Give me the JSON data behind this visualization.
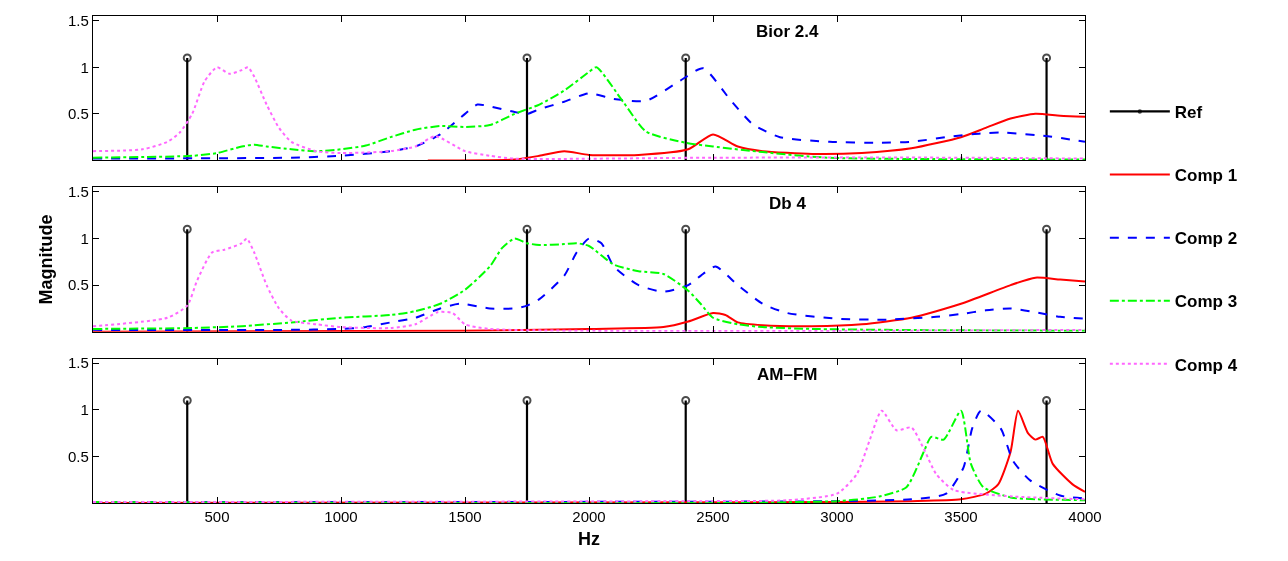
{
  "chart_data": [
    {
      "type": "line",
      "title": "Bior 2.4",
      "xlim": [
        0,
        4000
      ],
      "xticks": [
        500,
        1000,
        1500,
        2000,
        2500,
        3000,
        3500,
        4000
      ],
      "ylim": [
        0,
        1.55
      ],
      "yticks": [
        0.5,
        1,
        1.5
      ],
      "tick_labels": "y",
      "legend": "right",
      "series": [
        {
          "name": "Ref",
          "type": "lollipop",
          "color": "#000000",
          "marker": "circle",
          "x": [
            380,
            1750,
            2390,
            3845
          ],
          "values": [
            1.1,
            1.1,
            1.1,
            1.1
          ]
        },
        {
          "name": "Comp 1",
          "color": "#ff0000",
          "line_style": "solid",
          "x": [
            1350,
            1700,
            1800,
            1900,
            2000,
            2200,
            2400,
            2500,
            2600,
            2700,
            2900,
            3100,
            3300,
            3500,
            3600,
            3700,
            3800,
            3900,
            4000
          ],
          "values": [
            0,
            0.01,
            0.05,
            0.1,
            0.06,
            0.06,
            0.12,
            0.28,
            0.15,
            0.1,
            0.07,
            0.08,
            0.13,
            0.25,
            0.35,
            0.45,
            0.5,
            0.48,
            0.47
          ]
        },
        {
          "name": "Comp 2",
          "color": "#0000ff",
          "line_style": "dashed",
          "x": [
            0,
            800,
            1000,
            1200,
            1300,
            1400,
            1500,
            1550,
            1600,
            1700,
            1750,
            1800,
            1900,
            2000,
            2100,
            2230,
            2370,
            2460,
            2570,
            2660,
            2770,
            2970,
            3170,
            3300,
            3440,
            3580,
            3660,
            3850,
            4000
          ],
          "values": [
            0.02,
            0.03,
            0.05,
            0.1,
            0.15,
            0.28,
            0.5,
            0.6,
            0.58,
            0.52,
            0.5,
            0.55,
            0.63,
            0.72,
            0.66,
            0.64,
            0.86,
            0.99,
            0.65,
            0.39,
            0.25,
            0.2,
            0.19,
            0.2,
            0.25,
            0.29,
            0.3,
            0.26,
            0.2
          ]
        },
        {
          "name": "Comp 3",
          "color": "#00ff00",
          "line_style": "dashdot",
          "x": [
            0,
            400,
            500,
            600,
            650,
            700,
            800,
            900,
            1000,
            1100,
            1200,
            1300,
            1400,
            1500,
            1600,
            1700,
            1800,
            1900,
            2000,
            2030,
            2140,
            2230,
            2390,
            2500,
            2700,
            2960,
            4000
          ],
          "values": [
            0.03,
            0.05,
            0.08,
            0.15,
            0.17,
            0.15,
            0.12,
            0.1,
            0.12,
            0.16,
            0.25,
            0.33,
            0.37,
            0.36,
            0.38,
            0.5,
            0.6,
            0.75,
            0.95,
            1.0,
            0.62,
            0.31,
            0.19,
            0.15,
            0.09,
            0.03,
            0.01
          ]
        },
        {
          "name": "Comp 4",
          "color": "#ff66ff",
          "line_style": "dotted",
          "x": [
            0,
            200,
            300,
            350,
            400,
            450,
            500,
            550,
            600,
            625,
            650,
            700,
            750,
            800,
            900,
            1000,
            1200,
            1300,
            1380,
            1500,
            1600,
            1700,
            2500,
            3500,
            4000
          ],
          "values": [
            0.1,
            0.12,
            0.2,
            0.3,
            0.5,
            0.85,
            1.0,
            0.93,
            0.97,
            1.0,
            0.9,
            0.6,
            0.35,
            0.2,
            0.1,
            0.08,
            0.1,
            0.15,
            0.26,
            0.1,
            0.05,
            0.02,
            0.03,
            0.03,
            0.02
          ]
        }
      ]
    },
    {
      "type": "line",
      "title": "Db 4",
      "ylabel": "Magnitude",
      "xlim": [
        0,
        4000
      ],
      "xticks": [
        500,
        1000,
        1500,
        2000,
        2500,
        3000,
        3500,
        4000
      ],
      "ylim": [
        0,
        1.55
      ],
      "yticks": [
        0.5,
        1,
        1.5
      ],
      "tick_labels": "y",
      "series": [
        {
          "type": "lollipop",
          "color": "#000000",
          "marker": "circle",
          "x": [
            380,
            1750,
            2390,
            3845
          ],
          "values": [
            1.1,
            1.1,
            1.1,
            1.1
          ]
        },
        {
          "color": "#ff0000",
          "line_style": "solid",
          "x": [
            0,
            1500,
            2000,
            2300,
            2400,
            2500,
            2550,
            2600,
            2700,
            2900,
            3100,
            3300,
            3500,
            3700,
            3800,
            3900,
            4000
          ],
          "values": [
            0,
            0.01,
            0.03,
            0.05,
            0.11,
            0.2,
            0.18,
            0.1,
            0.07,
            0.06,
            0.08,
            0.15,
            0.3,
            0.5,
            0.58,
            0.56,
            0.54
          ]
        },
        {
          "color": "#0000ff",
          "line_style": "dashed",
          "x": [
            0,
            800,
            1000,
            1100,
            1200,
            1300,
            1400,
            1480,
            1600,
            1700,
            1750,
            1800,
            1900,
            1950,
            2000,
            2050,
            2100,
            2200,
            2300,
            2400,
            2450,
            2510,
            2600,
            2700,
            2800,
            3000,
            3200,
            3400,
            3500,
            3600,
            3700,
            3800,
            3900,
            4000
          ],
          "values": [
            0.02,
            0.02,
            0.03,
            0.05,
            0.1,
            0.15,
            0.25,
            0.3,
            0.25,
            0.25,
            0.28,
            0.35,
            0.6,
            0.85,
            1.0,
            0.95,
            0.7,
            0.5,
            0.43,
            0.5,
            0.6,
            0.7,
            0.5,
            0.3,
            0.2,
            0.14,
            0.13,
            0.16,
            0.19,
            0.23,
            0.25,
            0.21,
            0.16,
            0.14
          ]
        },
        {
          "color": "#00ff00",
          "line_style": "dashdot",
          "x": [
            0,
            400,
            600,
            800,
            1000,
            1200,
            1300,
            1400,
            1500,
            1600,
            1650,
            1700,
            1750,
            1800,
            1900,
            1950,
            2000,
            2100,
            2200,
            2300,
            2400,
            2450,
            2500,
            2600,
            2700,
            2900,
            3200,
            4000
          ],
          "values": [
            0.03,
            0.04,
            0.06,
            0.1,
            0.15,
            0.18,
            0.22,
            0.3,
            0.45,
            0.7,
            0.9,
            1.0,
            0.95,
            0.93,
            0.94,
            0.95,
            0.92,
            0.72,
            0.65,
            0.62,
            0.44,
            0.3,
            0.15,
            0.08,
            0.05,
            0.03,
            0.02,
            0.01
          ]
        },
        {
          "color": "#ff66ff",
          "line_style": "dotted",
          "x": [
            0,
            300,
            380,
            420,
            480,
            530,
            600,
            620,
            650,
            700,
            750,
            800,
            900,
            1000,
            1200,
            1300,
            1390,
            1450,
            1500,
            1600,
            4000
          ],
          "values": [
            0.06,
            0.15,
            0.28,
            0.55,
            0.85,
            0.88,
            0.95,
            1.0,
            0.85,
            0.5,
            0.25,
            0.12,
            0.08,
            0.05,
            0.04,
            0.08,
            0.21,
            0.2,
            0.08,
            0.03,
            0.02
          ]
        }
      ]
    },
    {
      "type": "line",
      "title": "AM–FM",
      "xlabel": "Hz",
      "xlim": [
        0,
        4000
      ],
      "xticks": [
        500,
        1000,
        1500,
        2000,
        2500,
        3000,
        3500,
        4000
      ],
      "ylim": [
        0,
        1.55
      ],
      "yticks": [
        0.5,
        1,
        1.5
      ],
      "series": [
        {
          "type": "lollipop",
          "color": "#000000",
          "marker": "circle",
          "x": [
            380,
            1750,
            2390,
            3845
          ],
          "values": [
            1.1,
            1.1,
            1.1,
            1.1
          ]
        },
        {
          "color": "#ff0000",
          "line_style": "solid",
          "x": [
            0,
            3000,
            3300,
            3500,
            3600,
            3650,
            3700,
            3730,
            3770,
            3800,
            3830,
            3870,
            3950,
            4000
          ],
          "values": [
            0,
            0.01,
            0.02,
            0.04,
            0.1,
            0.2,
            0.55,
            0.99,
            0.75,
            0.68,
            0.71,
            0.42,
            0.2,
            0.12
          ]
        },
        {
          "color": "#0000ff",
          "line_style": "dashed",
          "x": [
            0,
            3000,
            3300,
            3440,
            3510,
            3545,
            3580,
            3660,
            3710,
            3780,
            3900,
            4000
          ],
          "values": [
            0.01,
            0.02,
            0.04,
            0.1,
            0.38,
            0.8,
            0.99,
            0.8,
            0.45,
            0.24,
            0.08,
            0.05
          ]
        },
        {
          "color": "#00ff00",
          "line_style": "dashdot",
          "x": [
            0,
            3000,
            3170,
            3280,
            3350,
            3380,
            3430,
            3500,
            3540,
            3590,
            3700,
            3800,
            4000
          ],
          "values": [
            0.01,
            0.02,
            0.07,
            0.17,
            0.55,
            0.71,
            0.68,
            0.99,
            0.42,
            0.17,
            0.06,
            0.04,
            0.03
          ]
        },
        {
          "color": "#ff66ff",
          "line_style": "dotted",
          "x": [
            0,
            2500,
            2800,
            3000,
            3080,
            3130,
            3180,
            3240,
            3300,
            3350,
            3400,
            3470,
            3710,
            4000
          ],
          "values": [
            0.01,
            0.02,
            0.03,
            0.1,
            0.31,
            0.66,
            0.99,
            0.78,
            0.81,
            0.58,
            0.31,
            0.14,
            0.07,
            0.04
          ]
        }
      ]
    }
  ]
}
